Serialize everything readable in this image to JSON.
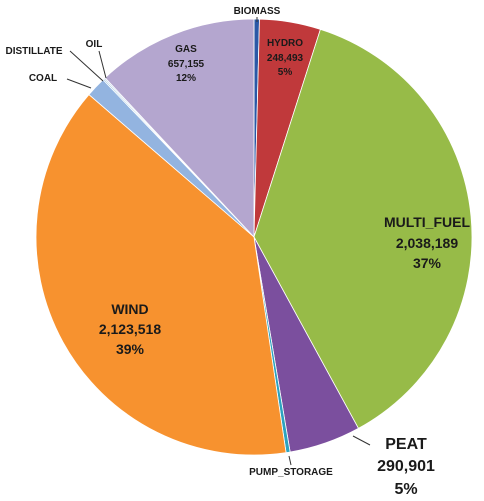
{
  "chart_data": {
    "type": "pie",
    "title": "",
    "slices": [
      {
        "name": "BIOMASS",
        "value": null,
        "percent": null,
        "color": "#2b58a6"
      },
      {
        "name": "HYDRO",
        "value": 248493,
        "value_text": "248,493",
        "percent": 5,
        "percent_text": "5%",
        "color": "#c0393b"
      },
      {
        "name": "MULTI_FUEL",
        "value": 2038189,
        "value_text": "2,038,189",
        "percent": 37,
        "percent_text": "37%",
        "color": "#97bb48"
      },
      {
        "name": "PEAT",
        "value": 290901,
        "value_text": "290,901",
        "percent": 5,
        "percent_text": "5%",
        "color": "#7b4f9e"
      },
      {
        "name": "PUMP_STORAGE",
        "value": null,
        "percent": null,
        "color": "#2ca3bf"
      },
      {
        "name": "WIND",
        "value": 2123518,
        "value_text": "2,123,518",
        "percent": 39,
        "percent_text": "39%",
        "color": "#f7922f"
      },
      {
        "name": "COAL",
        "value": null,
        "percent": null,
        "color": "#93b4e0"
      },
      {
        "name": "DISTILLATE",
        "value": null,
        "percent": null,
        "color": "#8bb8d4"
      },
      {
        "name": "OIL",
        "value": null,
        "percent": null,
        "color": "#b9cfe8"
      },
      {
        "name": "GAS",
        "value": 657155,
        "value_text": "657,155",
        "percent": 12,
        "percent_text": "12%",
        "color": "#b4a6cf"
      }
    ]
  }
}
